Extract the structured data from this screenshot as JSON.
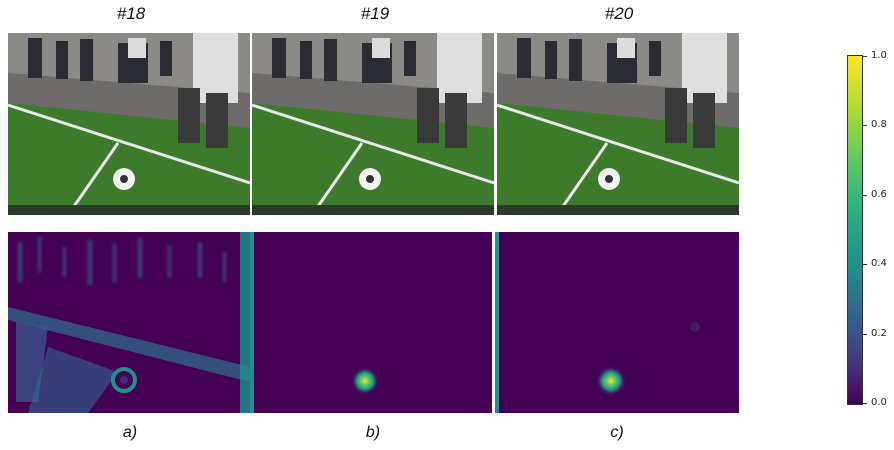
{
  "frames": [
    {
      "title": "#18",
      "label": "a)"
    },
    {
      "title": "#19",
      "label": "b)"
    },
    {
      "title": "#20",
      "label": "c)"
    }
  ],
  "colorbar": {
    "ticks": [
      "0.0",
      "0.2",
      "0.4",
      "0.6",
      "0.8",
      "1.0"
    ],
    "colormap": [
      "#440154",
      "#472d7b",
      "#3b528b",
      "#2c728e",
      "#21918c",
      "#28ae80",
      "#5ec962",
      "#addc30",
      "#fde725"
    ]
  },
  "colors": {
    "heatmap_background": "#440154",
    "heatmap_peak": "#fde725",
    "grass": "#3e7a2a",
    "divider": "#21918c"
  }
}
